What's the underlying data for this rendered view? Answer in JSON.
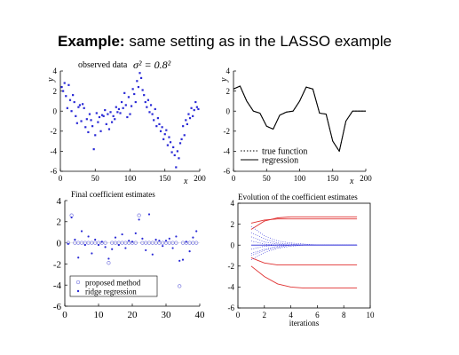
{
  "slide": {
    "title_bold": "Example:",
    "title_rest": " same setting as in the LASSO example"
  },
  "chart_data": [
    {
      "id": "observed",
      "type": "scatter",
      "title": "observed data",
      "annotation": "σ² = 0.8²",
      "xlabel": "x",
      "ylabel": "y",
      "xlim": [
        0,
        200
      ],
      "ylim": [
        -6,
        4
      ],
      "xticks": [
        0,
        50,
        100,
        150,
        200
      ],
      "yticks": [
        4,
        2,
        0,
        -2,
        -4,
        -6
      ],
      "grid": false,
      "color": "#2a2ad6",
      "series": [
        {
          "x": [
            2,
            4,
            6,
            8,
            10,
            12,
            14,
            16,
            18,
            20,
            22,
            24,
            26,
            28,
            30,
            32,
            34,
            36,
            38,
            40,
            42,
            44,
            46,
            48,
            50,
            52,
            54,
            56,
            58,
            60,
            62,
            64,
            66,
            68,
            70,
            72,
            74,
            76,
            78,
            80,
            82,
            84,
            86,
            88,
            90,
            92,
            94,
            96,
            98,
            100,
            102,
            104,
            106,
            108,
            110,
            112,
            114,
            116,
            118,
            120,
            122,
            124,
            126,
            128,
            130,
            132,
            134,
            136,
            138,
            140,
            142,
            144,
            146,
            148,
            150,
            152,
            154,
            156,
            158,
            160,
            162,
            164,
            166,
            168,
            170,
            172,
            174,
            176,
            178,
            180,
            182,
            184,
            186,
            188,
            190,
            192,
            194,
            196,
            198
          ],
          "y": [
            2.4,
            2.0,
            2.8,
            1.5,
            0.3,
            2.6,
            1.1,
            0.0,
            1.6,
            0.9,
            -0.5,
            -1.2,
            0.4,
            0.6,
            -1.0,
            0.7,
            0.3,
            -1.6,
            -0.8,
            -2.1,
            -0.3,
            -0.9,
            -1.5,
            -3.8,
            -2.4,
            -0.2,
            -1.1,
            -0.6,
            -2.0,
            -0.4,
            -0.5,
            0.1,
            -1.3,
            -0.3,
            -1.8,
            -0.1,
            -1.1,
            -0.5,
            -0.8,
            0.4,
            -0.1,
            0.2,
            -0.2,
            0.9,
            0.3,
            1.8,
            0.6,
            -0.6,
            1.4,
            -0.3,
            0.5,
            2.2,
            1.7,
            0.9,
            3.0,
            2.4,
            3.8,
            3.3,
            2.1,
            1.6,
            0.9,
            0.4,
            1.1,
            -0.1,
            0.6,
            -0.3,
            -0.9,
            0.2,
            -1.5,
            -0.7,
            -1.3,
            -2.0,
            -1.6,
            -2.8,
            -2.3,
            -1.9,
            -3.4,
            -2.6,
            -3.1,
            -4.1,
            -3.6,
            -4.4,
            -5.6,
            -4.0,
            -4.7,
            -3.2,
            -2.8,
            -1.5,
            -2.4,
            -0.9,
            -1.3,
            -0.3,
            -0.7,
            0.3,
            -0.5,
            0.1,
            0.9,
            0.4,
            0.2
          ]
        }
      ]
    },
    {
      "id": "regression",
      "type": "line",
      "xlabel": "x",
      "ylabel": "y",
      "xlim": [
        0,
        200
      ],
      "ylim": [
        -6,
        4
      ],
      "xticks": [
        0,
        50,
        100,
        150,
        200
      ],
      "yticks": [
        4,
        2,
        0,
        -2,
        -4,
        -6
      ],
      "grid": false,
      "legend": {
        "position": "bottom-left",
        "entries": [
          "true function",
          "regression"
        ]
      },
      "series": [
        {
          "name": "true function",
          "style": "dotted",
          "x": [
            0,
            10,
            20,
            30,
            40,
            50,
            60,
            70,
            80,
            90,
            100,
            110,
            120,
            130,
            140,
            150,
            160,
            170,
            180,
            190,
            200
          ],
          "y": [
            2.2,
            2.5,
            1.0,
            0.0,
            -0.2,
            -1.5,
            -1.8,
            -0.4,
            -0.1,
            0.0,
            1.0,
            2.4,
            2.2,
            -0.2,
            -0.3,
            -3.0,
            -4.0,
            -1.0,
            0.0,
            0.0,
            0.0
          ]
        },
        {
          "name": "regression",
          "style": "solid",
          "x": [
            0,
            10,
            20,
            30,
            40,
            50,
            60,
            70,
            80,
            90,
            100,
            110,
            120,
            130,
            140,
            150,
            160,
            170,
            180,
            190,
            200
          ],
          "y": [
            2.2,
            2.5,
            1.0,
            0.0,
            -0.2,
            -1.5,
            -1.8,
            -0.4,
            -0.1,
            0.0,
            1.0,
            2.4,
            2.2,
            -0.2,
            -0.3,
            -3.0,
            -4.0,
            -1.0,
            0.0,
            0.0,
            0.0
          ]
        }
      ]
    },
    {
      "id": "coefficients",
      "type": "scatter",
      "title": "Final coefficient estimates",
      "xlim": [
        0,
        40
      ],
      "ylim": [
        -6,
        4
      ],
      "xticks": [
        0,
        10,
        20,
        30,
        40
      ],
      "yticks": [
        4,
        2,
        0,
        -2,
        -4,
        -6
      ],
      "grid": false,
      "legend": {
        "position": "bottom-left",
        "entries": [
          "proposed method",
          "ridge regression"
        ]
      },
      "series": [
        {
          "name": "proposed method",
          "marker": "circle",
          "color": "#7a7ae0",
          "x": [
            1,
            2,
            3,
            4,
            5,
            6,
            7,
            8,
            9,
            10,
            11,
            12,
            13,
            14,
            15,
            16,
            17,
            18,
            19,
            20,
            21,
            22,
            23,
            24,
            25,
            26,
            27,
            28,
            29,
            30,
            31,
            32,
            33,
            34,
            35,
            36,
            37,
            38,
            39
          ],
          "y": [
            0,
            2.6,
            0,
            0,
            0,
            0,
            0,
            0,
            0,
            0,
            0,
            0,
            -1.9,
            0,
            0,
            0,
            0,
            0,
            0,
            0,
            0,
            2.6,
            0,
            0,
            0,
            0,
            0,
            0,
            0,
            0,
            0,
            0,
            0,
            -4.1,
            0,
            0,
            0,
            0,
            0
          ]
        },
        {
          "name": "ridge regression",
          "marker": "dot",
          "color": "#2a2ad6",
          "x": [
            1,
            2,
            3,
            4,
            5,
            6,
            7,
            8,
            9,
            10,
            11,
            12,
            13,
            14,
            15,
            16,
            17,
            18,
            19,
            20,
            21,
            22,
            23,
            24,
            25,
            26,
            27,
            28,
            29,
            30,
            31,
            32,
            33,
            34,
            35,
            36,
            37,
            38,
            39
          ],
          "y": [
            -0.1,
            2.4,
            0.3,
            -1.4,
            1.1,
            -0.2,
            0.6,
            -1.0,
            0.3,
            -0.2,
            0.1,
            -0.4,
            -1.5,
            -0.6,
            0.5,
            -0.2,
            0.8,
            -0.5,
            0.2,
            0.1,
            0.9,
            2.2,
            0.4,
            -0.7,
            2.7,
            -1.1,
            0.3,
            0.2,
            -0.3,
            0.2,
            0.4,
            -0.5,
            0.6,
            -1.7,
            -1.6,
            0.1,
            -0.8,
            0.5,
            1.1
          ]
        }
      ]
    },
    {
      "id": "evolution",
      "type": "line",
      "title": "Evolution of the coefficient estimates",
      "xlabel": "iterations",
      "xlim": [
        0,
        10
      ],
      "ylim": [
        -6,
        4
      ],
      "xticks": [
        0,
        2,
        4,
        6,
        8,
        10
      ],
      "yticks": [
        4,
        2,
        0,
        -2,
        -4,
        -6
      ],
      "grid": false,
      "x": [
        1,
        2,
        3,
        4,
        5,
        6,
        7,
        8,
        9
      ],
      "series": [
        {
          "color": "#e03030",
          "style": "solid",
          "values": [
            1.5,
            2.3,
            2.6,
            2.7,
            2.7,
            2.7,
            2.7,
            2.7,
            2.7
          ]
        },
        {
          "color": "#e03030",
          "style": "solid",
          "values": [
            2.1,
            2.4,
            2.5,
            2.5,
            2.5,
            2.5,
            2.5,
            2.5,
            2.5
          ]
        },
        {
          "color": "#e03030",
          "style": "solid",
          "values": [
            -1.2,
            -1.7,
            -1.9,
            -1.9,
            -1.9,
            -1.9,
            -1.9,
            -1.9,
            -1.9
          ]
        },
        {
          "color": "#e03030",
          "style": "solid",
          "values": [
            -2.0,
            -3.0,
            -3.7,
            -4.0,
            -4.1,
            -4.1,
            -4.1,
            -4.1,
            -4.1
          ]
        },
        {
          "color": "#2a2ad6",
          "style": "dotted",
          "values": [
            1.8,
            0.9,
            0.4,
            0.2,
            0.1,
            0.0,
            0.0,
            0.0,
            0.0
          ]
        },
        {
          "color": "#2a2ad6",
          "style": "dotted",
          "values": [
            1.2,
            0.6,
            0.2,
            0.1,
            0.0,
            0.0,
            0.0,
            0.0,
            0.0
          ]
        },
        {
          "color": "#2a2ad6",
          "style": "dotted",
          "values": [
            0.8,
            0.3,
            0.1,
            0.0,
            0.0,
            0.0,
            0.0,
            0.0,
            0.0
          ]
        },
        {
          "color": "#2a2ad6",
          "style": "dotted",
          "values": [
            0.4,
            0.1,
            0.0,
            0.0,
            0.0,
            0.0,
            0.0,
            0.0,
            0.0
          ]
        },
        {
          "color": "#2a2ad6",
          "style": "dotted",
          "values": [
            -0.4,
            -0.1,
            0.0,
            0.0,
            0.0,
            0.0,
            0.0,
            0.0,
            0.0
          ]
        },
        {
          "color": "#2a2ad6",
          "style": "dotted",
          "values": [
            -0.8,
            -0.4,
            -0.1,
            0.0,
            0.0,
            0.0,
            0.0,
            0.0,
            0.0
          ]
        },
        {
          "color": "#2a2ad6",
          "style": "dotted",
          "values": [
            -1.4,
            -0.7,
            -0.3,
            -0.1,
            0.0,
            0.0,
            0.0,
            0.0,
            0.0
          ]
        },
        {
          "color": "#2a2ad6",
          "style": "dotted",
          "values": [
            -1.0,
            -0.5,
            -0.2,
            0.0,
            0.0,
            0.0,
            0.0,
            0.0,
            0.0
          ]
        },
        {
          "color": "#2a2ad6",
          "style": "solid",
          "values": [
            0.0,
            0.0,
            0.0,
            0.0,
            0.0,
            0.0,
            0.0,
            0.0,
            0.0
          ]
        }
      ]
    }
  ]
}
